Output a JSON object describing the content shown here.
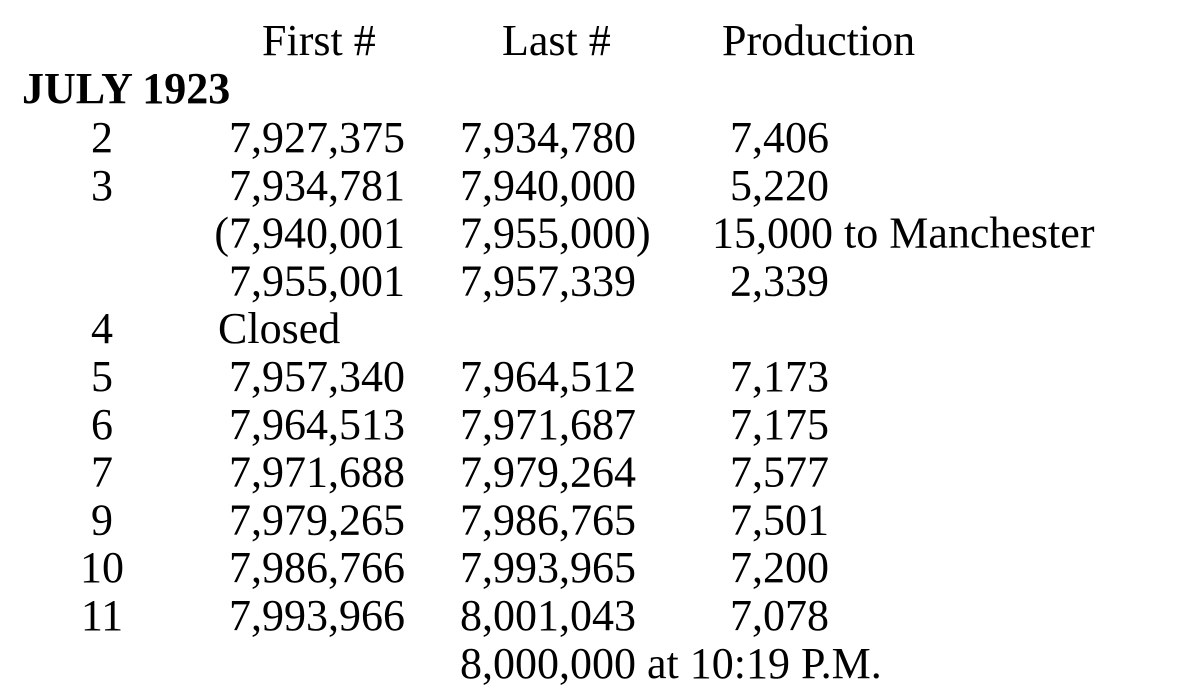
{
  "header": {
    "columns": [
      "First #",
      "Last #",
      "Production"
    ]
  },
  "section": "JULY 1923",
  "rows": [
    {
      "day": "2",
      "first": "7,927,375",
      "last": "7,934,780",
      "production": "7,406"
    },
    {
      "day": "3",
      "first": "7,934,781",
      "last": "7,940,000",
      "production": "5,220"
    },
    {
      "first": "(7,940,001",
      "last": "7,955,000)",
      "production": "15,000 to Manchester"
    },
    {
      "first": "7,955,001",
      "last": "7,957,339",
      "production": "2,339"
    },
    {
      "day": "4",
      "status": "Closed"
    },
    {
      "day": "5",
      "first": "7,957,340",
      "last": "7,964,512",
      "production": "7,173"
    },
    {
      "day": "6",
      "first": "7,964,513",
      "last": "7,971,687",
      "production": "7,175"
    },
    {
      "day": "7",
      "first": "7,971,688",
      "last": "7,979,264",
      "production": "7,577"
    },
    {
      "day": "9",
      "first": "7,979,265",
      "last": "7,986,765",
      "production": "7,501"
    },
    {
      "day": "10",
      "first": "7,986,766",
      "last": "7,993,965",
      "production": "7,200"
    },
    {
      "day": "11",
      "first": "7,993,966",
      "last": "8,001,043",
      "production": "7,078"
    },
    {
      "note": "8,000,000 at 10:19 P.M."
    }
  ]
}
